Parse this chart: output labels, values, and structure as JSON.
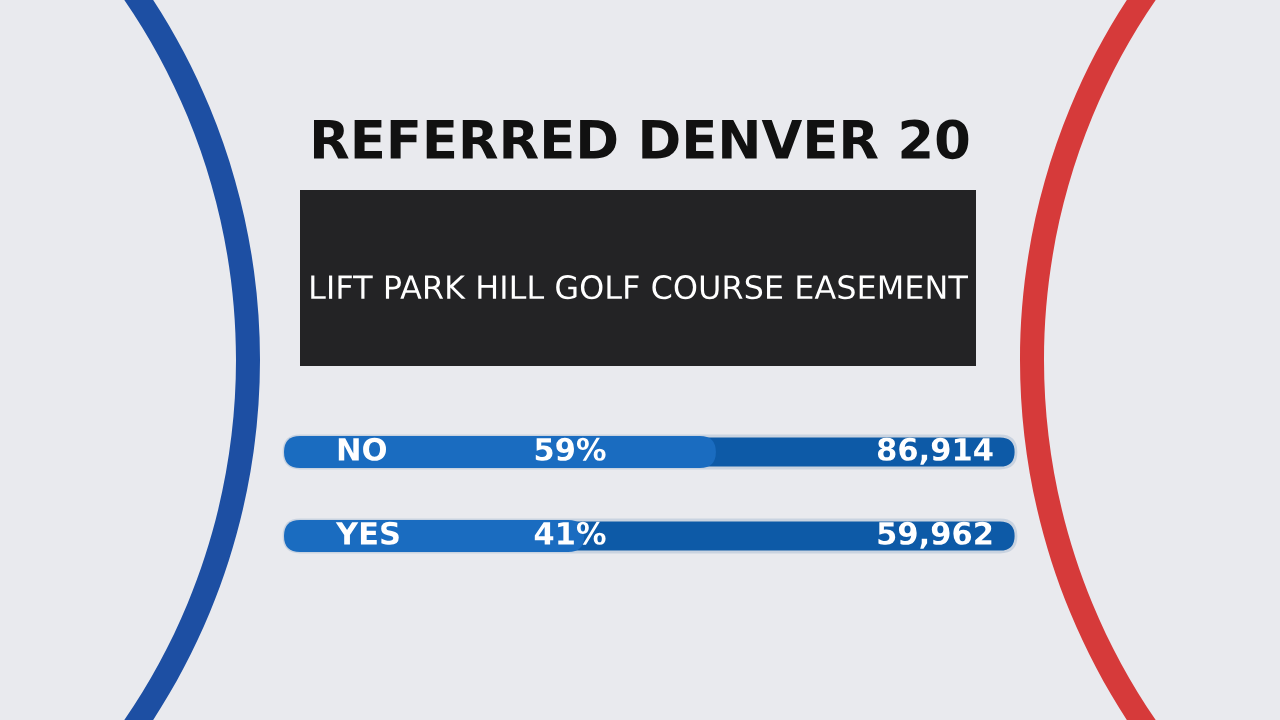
{
  "chart_data": {
    "type": "other",
    "title": "REFERRED DENVER 20",
    "subtitle": "LIFT PARK HILL GOLF COURSE EASEMENT",
    "categories": [
      "NO",
      "YES"
    ],
    "colors": [
      "#0d5aa7",
      "#1a6cc0"
    ],
    "series": [
      {
        "values": [
          59,
          41
        ],
        "value_labels": [
          "59%",
          "41%"
        ]
      },
      {
        "values": [
          86914,
          59962
        ],
        "value_labels": [
          "86,914",
          "59,962"
        ]
      }
    ]
  }
}
